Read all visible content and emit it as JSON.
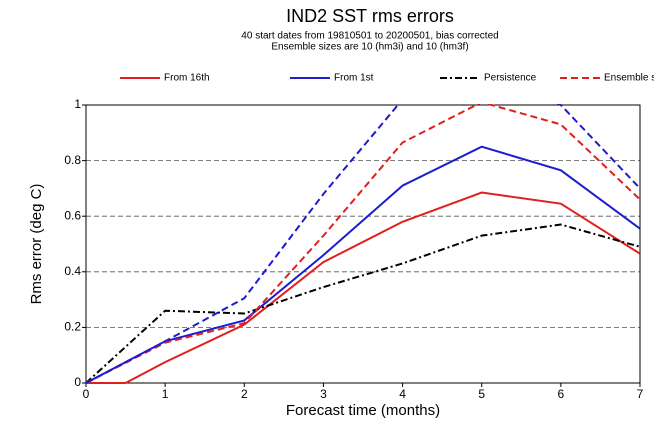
{
  "chart_data": {
    "type": "line",
    "title": "IND2 SST rms errors",
    "subtitle": [
      "40 start dates from 19810501 to 20200501, bias corrected",
      "Ensemble sizes are 10 (hm3i)  and 10 (hm3f)"
    ],
    "x_label": "Forecast time (months)",
    "y_label": "Rms error (deg C)",
    "xlim": [
      0,
      7
    ],
    "ylim": [
      0,
      1
    ],
    "xticks": [
      0,
      1,
      2,
      3,
      4,
      5,
      6,
      7
    ],
    "yticks": [
      0,
      0.2,
      0.4,
      0.6,
      0.8,
      1
    ],
    "grid": true,
    "legend": "top",
    "series": [
      {
        "name": "From 16th",
        "color": "#e0201c",
        "style": "solid",
        "x": [
          0,
          0.5,
          1,
          2,
          3,
          4,
          5,
          6,
          7
        ],
        "values": [
          0,
          0,
          0.075,
          0.21,
          0.435,
          0.58,
          0.685,
          0.645,
          0.465
        ]
      },
      {
        "name": "From 1st",
        "color": "#1c1cd0",
        "style": "solid",
        "x": [
          0,
          1,
          2,
          3,
          4,
          5,
          6,
          7
        ],
        "values": [
          0,
          0.15,
          0.225,
          0.46,
          0.71,
          0.85,
          0.765,
          0.555
        ]
      },
      {
        "name": "Persistence",
        "color": "#000000",
        "style": "dashdot",
        "x": [
          0,
          1,
          2,
          3,
          4,
          5,
          6,
          7
        ],
        "values": [
          0,
          0.26,
          0.25,
          0.345,
          0.43,
          0.53,
          0.57,
          0.49
        ]
      },
      {
        "name": "Ensemble sd",
        "color": "#e0201c",
        "style": "dashed",
        "x": [
          0,
          1,
          2,
          3,
          4,
          5,
          6,
          7
        ],
        "values": [
          0,
          0.145,
          0.215,
          0.53,
          0.865,
          1.01,
          0.93,
          0.66
        ]
      },
      {
        "color": "#1c1cd0",
        "style": "dashed",
        "x": [
          0,
          1,
          2,
          3,
          4,
          5,
          6,
          7
        ],
        "values": [
          0,
          0.15,
          0.305,
          0.68,
          1.02,
          1.15,
          1.0,
          0.7
        ]
      }
    ]
  }
}
